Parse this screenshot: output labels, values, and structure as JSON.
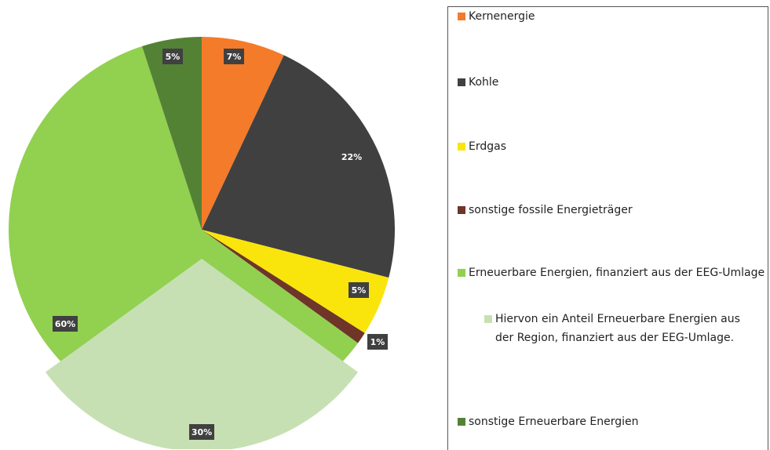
{
  "chart_data": {
    "type": "pie",
    "categories": [
      "Kernenergie",
      "Kohle",
      "Erdgas",
      "sonstige fossile Energieträger",
      "Erneuerbare Energien, finanziert aus der EEG-Umlage",
      "sonstige Erneuerbare Energien"
    ],
    "values": [
      7,
      22,
      5,
      1,
      60,
      5
    ],
    "value_labels": [
      "7%",
      "22%",
      "5%",
      "1%",
      "60%",
      "5%"
    ],
    "colors": [
      "#f47b2a",
      "#404040",
      "#f9e50c",
      "#6e3528",
      "#92d050",
      "#548235"
    ],
    "subset": {
      "name": "Hiervon ein Anteil Erneuerbare Energien aus der Region, finanziert aus der EEG-Umlage.",
      "value": 30,
      "value_label": "30%",
      "color": "#c6e0b4"
    }
  }
}
